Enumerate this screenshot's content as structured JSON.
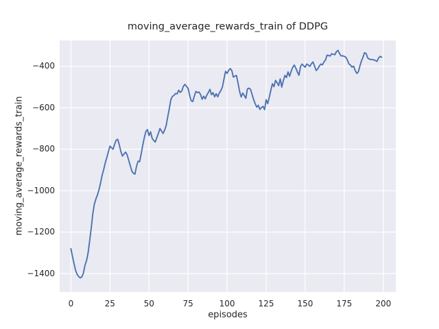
{
  "colors": {
    "figure_background": "#FFFFFF",
    "axes_background": "#EAEAF2",
    "grid": "#FFFFFF",
    "line": "#4C72B0",
    "text": "#262626"
  },
  "chart_data": {
    "type": "line",
    "title": "moving_average_rewards_train of DDPG",
    "xlabel": "episodes",
    "ylabel": "moving_average_rewards_train",
    "grid": true,
    "legend_position": "none",
    "xlim": [
      -7.2,
      208.0
    ],
    "ylim": [
      -1489,
      -275
    ],
    "x_ticks": {
      "values": [
        0,
        25,
        50,
        75,
        100,
        125,
        150,
        175,
        200
      ],
      "labels": [
        "0",
        "25",
        "50",
        "75",
        "100",
        "125",
        "150",
        "175",
        "200"
      ]
    },
    "y_ticks": {
      "values": [
        -400,
        -600,
        -800,
        -1000,
        -1200,
        -1400
      ],
      "labels": [
        "−400",
        "−600",
        "−800",
        "−1000",
        "−1200",
        "−1400"
      ]
    },
    "series": [
      {
        "name": "moving_average_rewards_train",
        "color": "#4C72B0",
        "x_start": 0,
        "x_step": 1,
        "values": [
          -1280,
          -1318,
          -1352,
          -1385,
          -1404,
          -1415,
          -1421,
          -1416,
          -1398,
          -1360,
          -1338,
          -1300,
          -1242,
          -1182,
          -1112,
          -1065,
          -1040,
          -1020,
          -995,
          -962,
          -925,
          -898,
          -865,
          -840,
          -812,
          -785,
          -793,
          -800,
          -775,
          -756,
          -752,
          -780,
          -812,
          -833,
          -823,
          -814,
          -827,
          -853,
          -880,
          -905,
          -916,
          -920,
          -882,
          -858,
          -860,
          -822,
          -780,
          -744,
          -714,
          -705,
          -734,
          -716,
          -747,
          -758,
          -765,
          -744,
          -724,
          -700,
          -712,
          -724,
          -708,
          -685,
          -643,
          -604,
          -560,
          -545,
          -540,
          -531,
          -533,
          -515,
          -526,
          -519,
          -496,
          -487,
          -497,
          -506,
          -540,
          -566,
          -570,
          -544,
          -521,
          -527,
          -524,
          -536,
          -559,
          -544,
          -557,
          -539,
          -526,
          -511,
          -537,
          -527,
          -547,
          -532,
          -547,
          -529,
          -517,
          -499,
          -461,
          -424,
          -434,
          -419,
          -411,
          -420,
          -452,
          -447,
          -444,
          -481,
          -521,
          -548,
          -529,
          -541,
          -554,
          -509,
          -505,
          -511,
          -536,
          -561,
          -581,
          -597,
          -588,
          -608,
          -599,
          -593,
          -609,
          -561,
          -580,
          -549,
          -516,
          -484,
          -498,
          -468,
          -479,
          -493,
          -461,
          -500,
          -469,
          -444,
          -454,
          -427,
          -448,
          -424,
          -405,
          -394,
          -409,
          -427,
          -443,
          -401,
          -389,
          -397,
          -404,
          -389,
          -394,
          -400,
          -387,
          -379,
          -399,
          -420,
          -413,
          -399,
          -389,
          -393,
          -379,
          -369,
          -346,
          -348,
          -350,
          -339,
          -342,
          -344,
          -329,
          -323,
          -339,
          -350,
          -349,
          -352,
          -356,
          -370,
          -388,
          -394,
          -404,
          -399,
          -420,
          -434,
          -427,
          -399,
          -374,
          -356,
          -334,
          -338,
          -359,
          -365,
          -367,
          -367,
          -369,
          -372,
          -376,
          -359,
          -352,
          -356
        ]
      }
    ]
  }
}
